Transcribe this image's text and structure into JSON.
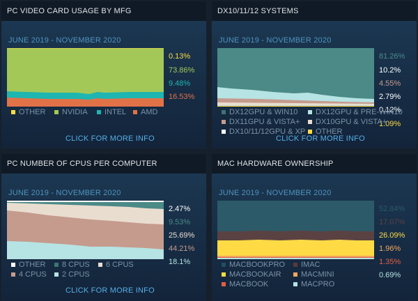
{
  "panels": {
    "gpu_mfg": {
      "title": "PC VIDEO CARD USAGE BY MFG",
      "date_range": "JUNE 2019 - NOVEMBER 2020",
      "link": "CLICK FOR MORE INFO",
      "values": [
        {
          "label": "0.13%",
          "color": "#fedb45"
        },
        {
          "label": "73.86%",
          "color": "#a3c858"
        },
        {
          "label": "9.48%",
          "color": "#1fb5b1"
        },
        {
          "label": "16.53%",
          "color": "#e17248"
        }
      ],
      "legend": [
        {
          "name": "OTHER",
          "color": "#fedb45"
        },
        {
          "name": "NVIDIA",
          "color": "#a3c858"
        },
        {
          "name": "INTEL",
          "color": "#1fb5b1"
        },
        {
          "name": "AMD",
          "color": "#e17248"
        }
      ]
    },
    "dx_systems": {
      "title": "DX10/11/12 SYSTEMS",
      "date_range": "JUNE 2019 - NOVEMBER 2020",
      "link": "CLICK FOR MORE INFO",
      "values": [
        {
          "label": "81.26%",
          "color": "#4b8a86"
        },
        {
          "label": "10.2%",
          "color": "#ffffff"
        },
        {
          "label": "4.55%",
          "color": "#c59b8d"
        },
        {
          "label": "2.79%",
          "color": "#ffffff"
        },
        {
          "label": "0.12%",
          "color": "#ffffff"
        },
        {
          "label": "1.09%",
          "color": "#fedb45"
        }
      ],
      "legend": [
        {
          "name": "DX12GPU & WIN10",
          "color": "#3e7472"
        },
        {
          "name": "DX12GPU & PRE-WIN10",
          "color": "#b6e3e3"
        },
        {
          "name": "DX11GPU & VISTA+",
          "color": "#c59b8d"
        },
        {
          "name": "DX10GPU & VISTA+",
          "color": "#e9ddd0"
        },
        {
          "name": "DX10/11/12GPU & XP",
          "color": "#ffffff"
        },
        {
          "name": "OTHER",
          "color": "#fedb45"
        }
      ]
    },
    "cpus": {
      "title": "PC NUMBER OF CPUS PER COMPUTER",
      "date_range": "JUNE 2019 - NOVEMBER 2020",
      "link": "CLICK FOR MORE INFO",
      "values": [
        {
          "label": "2.47%",
          "color": "#ffffff"
        },
        {
          "label": "9.53%",
          "color": "#4b8a86"
        },
        {
          "label": "25.69%",
          "color": "#e9ddd0"
        },
        {
          "label": "44.21%",
          "color": "#c59b8d"
        },
        {
          "label": "18.1%",
          "color": "#b6e3e3"
        }
      ],
      "legend": [
        {
          "name": "OTHER",
          "color": "#ffffff"
        },
        {
          "name": "8 CPUS",
          "color": "#3e7472"
        },
        {
          "name": "6 CPUS",
          "color": "#e9ddd0"
        },
        {
          "name": "4 CPUS",
          "color": "#c59b8d"
        },
        {
          "name": "2 CPUS",
          "color": "#b6e3e3"
        }
      ]
    },
    "mac": {
      "title": "MAC HARDWARE OWNERSHIP",
      "date_range": "JUNE 2019 - NOVEMBER 2020",
      "values": [
        {
          "label": "52.84%",
          "color": "#2c5a68"
        },
        {
          "label": "17.07%",
          "color": "#5a4242"
        },
        {
          "label": "26.09%",
          "color": "#fedb45"
        },
        {
          "label": "1.96%",
          "color": "#f3a65c"
        },
        {
          "label": "1.35%",
          "color": "#e55e44"
        },
        {
          "label": "0.69%",
          "color": "#b6e3e3"
        }
      ],
      "legend": [
        {
          "name": "MACBOOKPRO",
          "color": "#1f4f63"
        },
        {
          "name": "IMAC",
          "color": "#5a3a3a"
        },
        {
          "name": "MACBOOKAIR",
          "color": "#fedb45"
        },
        {
          "name": "MACMINI",
          "color": "#f3a65c"
        },
        {
          "name": "MACBOOK",
          "color": "#e55e44"
        },
        {
          "name": "MACPRO",
          "color": "#b6e3e3"
        }
      ]
    }
  }
}
